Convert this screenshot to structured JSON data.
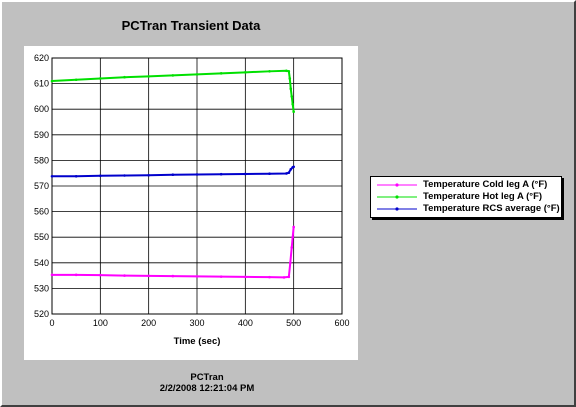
{
  "window": {
    "title": "PCTran Transient Data"
  },
  "footer": {
    "app": "PCTran",
    "timestamp": "2/2/2008 12:21:04 PM"
  },
  "colors": {
    "cold": "#ff00ff",
    "hot": "#00e000",
    "avg": "#0000cc",
    "background": "#c0c0c0"
  },
  "chart_data": {
    "type": "line",
    "title": "PCTran Transient Data",
    "xlabel": "Time (sec)",
    "ylabel": "",
    "xlim": [
      0,
      600
    ],
    "ylim": [
      520,
      620
    ],
    "xticks": [
      0,
      100,
      200,
      300,
      400,
      500,
      600
    ],
    "yticks": [
      520,
      530,
      540,
      550,
      560,
      570,
      580,
      590,
      600,
      610,
      620
    ],
    "grid": true,
    "legend_position": "right",
    "series": [
      {
        "name": "Temperature Cold leg A (°F)",
        "color": "#ff00ff",
        "x": [
          0,
          50,
          100,
          150,
          200,
          250,
          300,
          350,
          400,
          450,
          480,
          490,
          493,
          496,
          498,
          500
        ],
        "y": [
          535.3,
          535.3,
          535.2,
          535.0,
          534.9,
          534.8,
          534.7,
          534.6,
          534.5,
          534.4,
          534.3,
          534.5,
          540,
          546,
          550,
          554
        ]
      },
      {
        "name": "Temperature Hot leg A (°F)",
        "color": "#00e000",
        "x": [
          0,
          50,
          100,
          150,
          200,
          250,
          300,
          350,
          400,
          450,
          485,
          490,
          492,
          494,
          496,
          498,
          500
        ],
        "y": [
          611.0,
          611.5,
          612.0,
          612.5,
          612.8,
          613.2,
          613.6,
          614.0,
          614.4,
          614.8,
          615.0,
          614.8,
          612,
          608,
          605,
          602,
          599
        ]
      },
      {
        "name": "Temperature RCS average (°F)",
        "color": "#0000cc",
        "x": [
          0,
          50,
          100,
          150,
          200,
          250,
          300,
          350,
          400,
          450,
          485,
          490,
          494,
          498,
          500
        ],
        "y": [
          573.8,
          573.8,
          574.0,
          574.1,
          574.2,
          574.4,
          574.5,
          574.6,
          574.7,
          574.8,
          574.9,
          575.2,
          576.5,
          577.3,
          577.5
        ]
      }
    ]
  }
}
